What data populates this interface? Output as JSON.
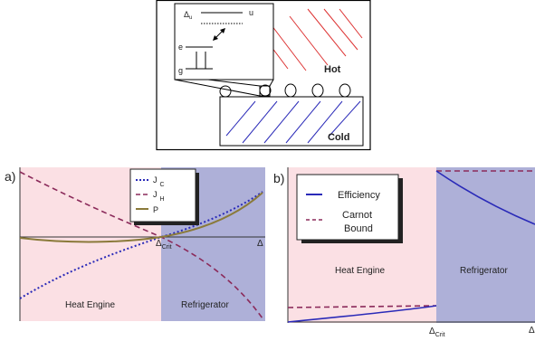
{
  "diagram": {
    "delta_symbol": "Δ",
    "delta_sub": "u",
    "upper_level": "u",
    "middle_level": "e",
    "lower_level": "g",
    "hot": "Hot",
    "cold": "Cold"
  },
  "panel_a": {
    "label": "a)",
    "legend": [
      {
        "name": "J",
        "sub": "C"
      },
      {
        "name": "J",
        "sub": "H"
      },
      {
        "name": "P"
      }
    ],
    "crit_symbol": "Δ",
    "crit_sub": "Crit",
    "axis_symbol": "Δ",
    "left_region": "Heat Engine",
    "right_region": "Refrigerator"
  },
  "panel_b": {
    "label": "b)",
    "legend": [
      {
        "lines": [
          "Efficiency"
        ]
      },
      {
        "lines": [
          "Carnot",
          "Bound"
        ]
      }
    ],
    "crit_symbol": "Δ",
    "crit_sub": "Crit",
    "axis_symbol": "Δ",
    "left_region": "Heat Engine",
    "right_region": "Refrigerator"
  }
}
